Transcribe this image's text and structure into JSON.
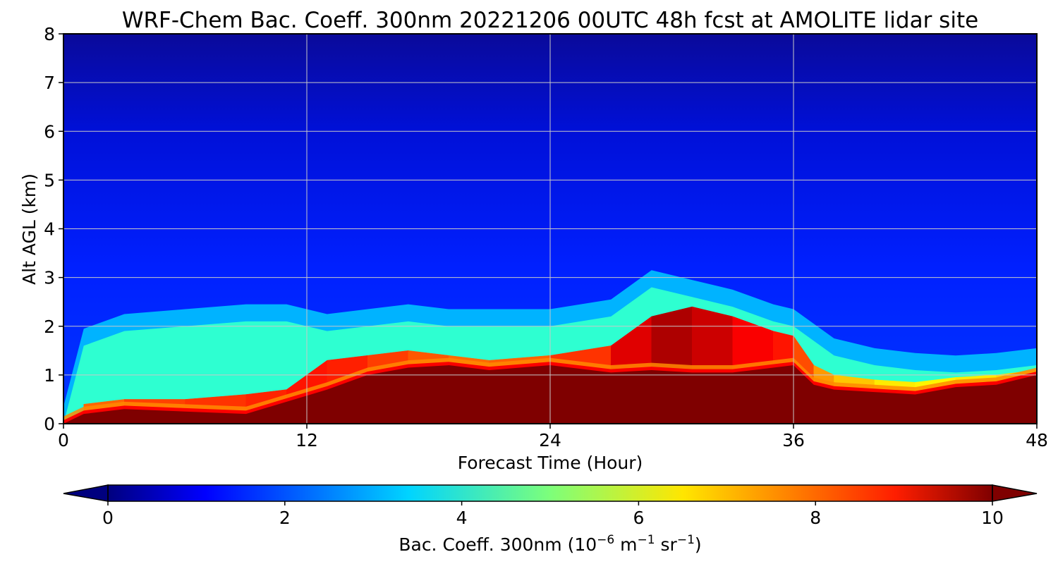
{
  "chart_data": {
    "type": "heatmap",
    "title": "WRF-Chem Bac. Coeff. 300nm  20221206 00UTC 48h fcst at AMOLITE lidar site",
    "xlabel": "Forecast Time (Hour)",
    "ylabel": "Alt AGL (km)",
    "xlim": [
      0,
      48
    ],
    "ylim": [
      0,
      8
    ],
    "x_ticks": [
      "0",
      "12",
      "24",
      "36",
      "48"
    ],
    "y_ticks": [
      "0",
      "1",
      "2",
      "3",
      "4",
      "5",
      "6",
      "7",
      "8"
    ],
    "grid": true,
    "colormap": "jet",
    "colorbar": {
      "orientation": "horizontal",
      "extend": "both",
      "range": [
        0,
        10
      ],
      "ticks": [
        "0",
        "2",
        "4",
        "6",
        "8",
        "10"
      ],
      "label_main": "Bac. Coeff. 300nm  (10",
      "label_exp1": "−6",
      "label_mid": " m",
      "label_exp2": "−1",
      "label_mid2": " sr",
      "label_exp3": "−1",
      "label_end": ")"
    },
    "profile_x_hours": [
      0,
      1,
      3,
      6,
      9,
      11,
      13,
      15,
      17,
      19,
      21,
      24,
      27,
      29,
      31,
      33,
      35,
      36,
      37,
      38,
      40,
      42,
      44,
      46,
      48
    ],
    "saturated_layer_top_km": [
      0.0,
      0.2,
      0.3,
      0.25,
      0.2,
      0.45,
      0.7,
      1.0,
      1.15,
      1.2,
      1.1,
      1.2,
      1.05,
      1.1,
      1.05,
      1.05,
      1.15,
      1.2,
      0.8,
      0.7,
      0.65,
      0.6,
      0.75,
      0.8,
      1.0
    ],
    "aerosol_layer_top_km": [
      0.0,
      1.6,
      1.9,
      2.0,
      2.1,
      2.1,
      1.9,
      2.0,
      2.1,
      2.0,
      2.0,
      2.0,
      2.2,
      2.8,
      2.6,
      2.4,
      2.1,
      2.0,
      1.7,
      1.4,
      1.2,
      1.1,
      1.05,
      1.1,
      1.2
    ],
    "peak_value_layer_top_km": [
      0.0,
      0.4,
      0.5,
      0.5,
      0.6,
      0.7,
      1.3,
      1.4,
      1.5,
      1.4,
      1.3,
      1.4,
      1.6,
      2.2,
      2.4,
      2.2,
      1.9,
      1.8,
      1.2,
      1.0,
      0.9,
      0.85,
      0.95,
      1.0,
      1.1
    ],
    "peak_values": [
      0.5,
      7.5,
      8.0,
      8.2,
      8.3,
      8.5,
      8.6,
      8.3,
      8.0,
      7.8,
      7.6,
      8.0,
      8.5,
      9.6,
      9.5,
      9.0,
      8.6,
      8.5,
      7.5,
      7.0,
      6.6,
      6.3,
      6.4,
      6.5,
      6.8
    ]
  }
}
